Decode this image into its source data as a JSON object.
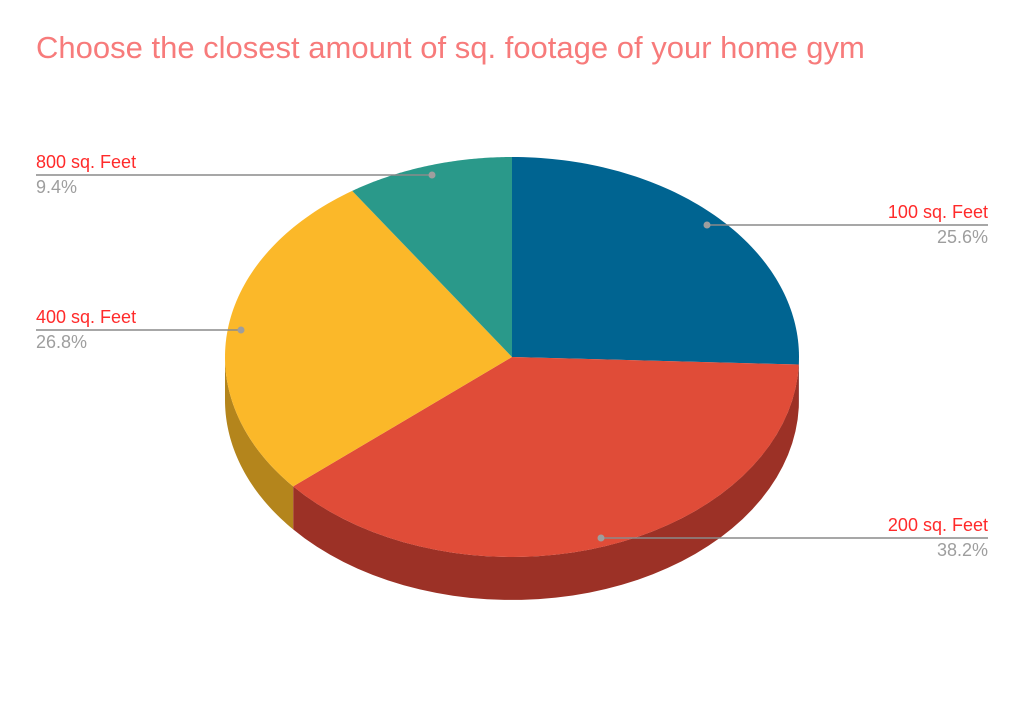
{
  "chart_data": {
    "type": "pie",
    "style": "3d",
    "title": "Choose the closest amount of sq. footage of your home gym",
    "legend": "none",
    "slices": [
      {
        "label": "100 sq. Feet",
        "percent_label": "25.6%",
        "value": 25.6,
        "color": "#006491",
        "side_color": "#004a6b"
      },
      {
        "label": "200 sq. Feet",
        "percent_label": "38.2%",
        "value": 38.2,
        "color": "#e04c38",
        "side_color": "#9c3126"
      },
      {
        "label": "400 sq. Feet",
        "percent_label": "26.8%",
        "value": 26.8,
        "color": "#fbb829",
        "side_color": "#b4851c"
      },
      {
        "label": "800 sq. Feet",
        "percent_label": "9.4%",
        "value": 9.4,
        "color": "#2a998a",
        "side_color": "#1e6e63"
      }
    ],
    "label_color": "#ff2a2a",
    "percent_color": "#9e9e9e"
  }
}
